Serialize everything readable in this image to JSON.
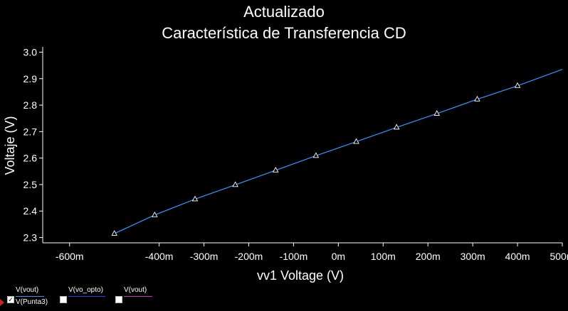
{
  "window": {
    "title_line1": "Actualizado",
    "title_line2": "Característica de Transferencia CD"
  },
  "chart_data": {
    "type": "line",
    "title": "Actualizado\nCaracterística de Transferencia CD",
    "xlabel": "vv1 Voltage (V)",
    "ylabel": "Voltaje (V)",
    "xlim": [
      -0.66,
      0.5
    ],
    "ylim": [
      2.28,
      3.02
    ],
    "x_ticks": [
      -0.6,
      -0.4,
      -0.3,
      -0.2,
      -0.1,
      0,
      0.1,
      0.2,
      0.3,
      0.4,
      0.5
    ],
    "x_tick_labels": [
      "-600m",
      "-400m",
      "-300m",
      "-200m",
      "-100m",
      "0m",
      "100m",
      "200m",
      "300m",
      "400m",
      "500m"
    ],
    "y_ticks": [
      2.3,
      2.4,
      2.5,
      2.6,
      2.7,
      2.8,
      2.9,
      3.0
    ],
    "y_tick_labels": [
      "2.3",
      "2.4",
      "2.5",
      "2.6",
      "2.7",
      "2.8",
      "2.9",
      "3.0"
    ],
    "grid": false,
    "series": [
      {
        "name": "V(vout)",
        "color": "#3399ff",
        "marker": "triangle",
        "x": [
          -0.5,
          -0.41,
          -0.32,
          -0.23,
          -0.14,
          -0.05,
          0.04,
          0.13,
          0.22,
          0.31,
          0.4,
          0.5
        ],
        "y": [
          2.315,
          2.385,
          2.445,
          2.499,
          2.554,
          2.609,
          2.662,
          2.716,
          2.768,
          2.822,
          2.873,
          2.935
        ]
      }
    ],
    "legend": [
      {
        "name": "V(vout)",
        "color": "#3399ff",
        "checked": true
      },
      {
        "name": "V(vo_opto)",
        "color": "#2040ff",
        "checked": false
      },
      {
        "name": "V(vout)",
        "color": "#cc33cc",
        "checked": false
      }
    ],
    "legend_sub": "V(Punta3)"
  }
}
